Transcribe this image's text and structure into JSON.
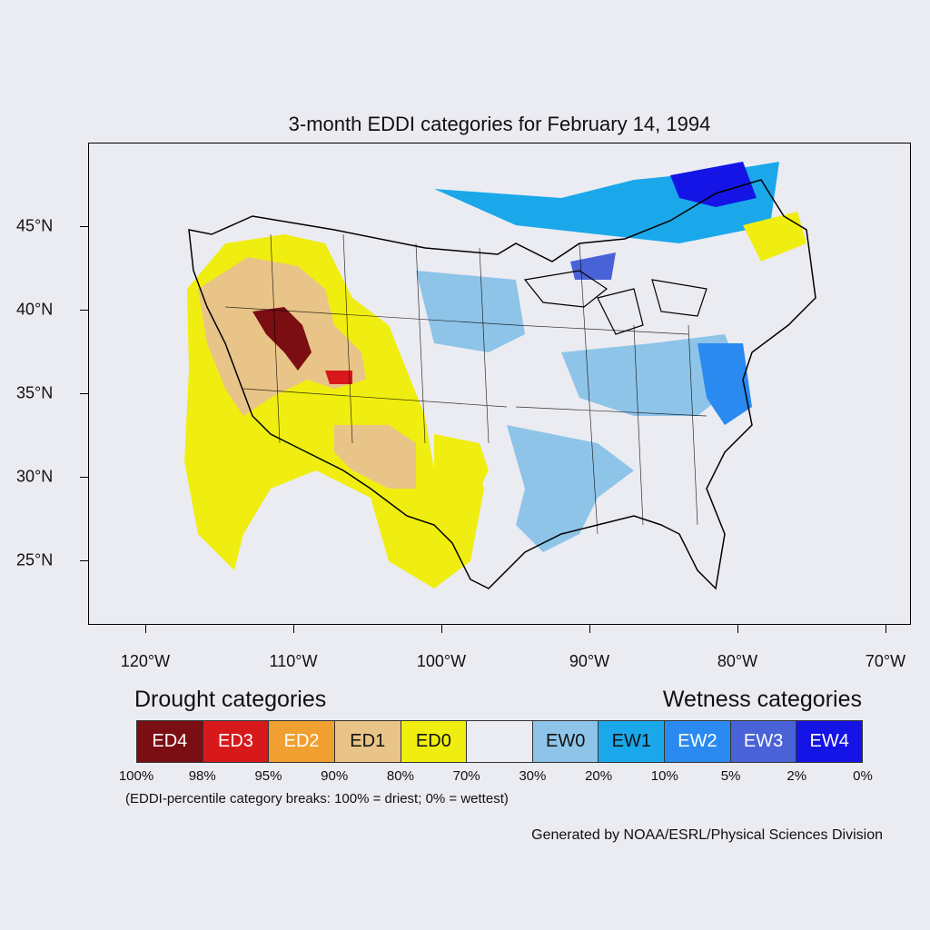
{
  "title": "3-month EDDI categories for February 14, 1994",
  "map": {
    "lat_labels": [
      {
        "deg": 45,
        "label": "45°N"
      },
      {
        "deg": 40,
        "label": "40°N"
      },
      {
        "deg": 35,
        "label": "35°N"
      },
      {
        "deg": 30,
        "label": "30°N"
      },
      {
        "deg": 25,
        "label": "25°N"
      }
    ],
    "lon_labels": [
      {
        "deg": -120,
        "label": "120°W"
      },
      {
        "deg": -110,
        "label": "110°W"
      },
      {
        "deg": -100,
        "label": "100°W"
      },
      {
        "deg": -90,
        "label": "90°W"
      },
      {
        "deg": -80,
        "label": "80°W"
      },
      {
        "deg": -70,
        "label": "70°W"
      }
    ],
    "lon_range": [
      -123.8,
      -68.2
    ],
    "lat_range": [
      21,
      50
    ]
  },
  "legend": {
    "drought_heading": "Drought categories",
    "wetness_heading": "Wetness categories",
    "categories": [
      {
        "label": "ED4",
        "color": "#7a0e12",
        "text_color": "#ffffff"
      },
      {
        "label": "ED3",
        "color": "#d7191c",
        "text_color": "#ffffff"
      },
      {
        "label": "ED2",
        "color": "#f0a030",
        "text_color": "#ffffff"
      },
      {
        "label": "ED1",
        "color": "#e8c488",
        "text_color": "#111111"
      },
      {
        "label": "ED0",
        "color": "#f0ee10",
        "text_color": "#111111"
      },
      {
        "label": "",
        "color": "#ebebf2",
        "text_color": "#111111"
      },
      {
        "label": "EW0",
        "color": "#8ec4e8",
        "text_color": "#111111"
      },
      {
        "label": "EW1",
        "color": "#1aa8ea",
        "text_color": "#111111"
      },
      {
        "label": "EW2",
        "color": "#2a8af0",
        "text_color": "#ffffff"
      },
      {
        "label": "EW3",
        "color": "#4a62d8",
        "text_color": "#ffffff"
      },
      {
        "label": "EW4",
        "color": "#1414e6",
        "text_color": "#ffffff"
      }
    ],
    "breaks": [
      "100%",
      "98%",
      "95%",
      "90%",
      "80%",
      "70%",
      "30%",
      "20%",
      "10%",
      "5%",
      "2%",
      "0%"
    ],
    "note": "(EDDI-percentile category breaks: 100% = driest; 0% = wettest)"
  },
  "credit": "Generated by NOAA/ESRL/Physical Sciences Division"
}
